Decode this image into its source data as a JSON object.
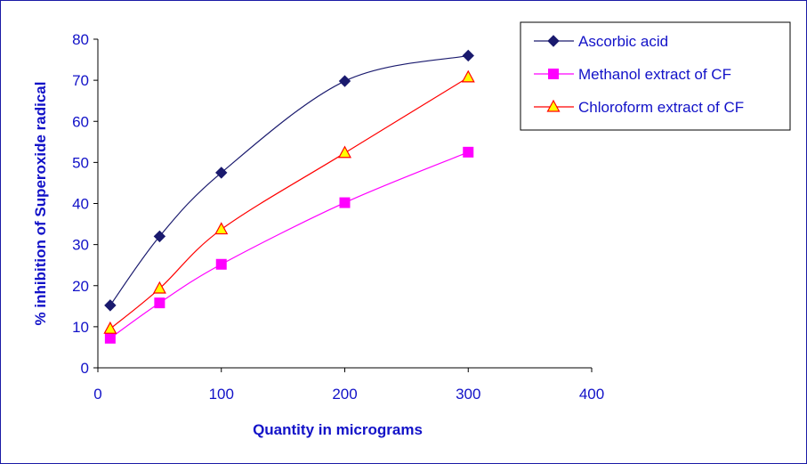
{
  "chart_data": {
    "type": "line",
    "title": "",
    "xlabel": "Quantity in micrograms",
    "ylabel": "% inhibition of Superoxide radical",
    "xlim": [
      0,
      400
    ],
    "ylim": [
      0,
      80
    ],
    "xticks": [
      0,
      100,
      200,
      300,
      400
    ],
    "yticks": [
      0,
      10,
      20,
      30,
      40,
      50,
      60,
      70,
      80
    ],
    "grid": false,
    "legend_position": "top-right",
    "series": [
      {
        "name": "Ascorbic acid",
        "color": "#1a1a6e",
        "marker": "diamond",
        "x": [
          10,
          50,
          100,
          200,
          300
        ],
        "y": [
          15.2,
          32.0,
          47.5,
          69.8,
          76.0
        ]
      },
      {
        "name": "Methanol extract of CF",
        "color": "#ff00ff",
        "marker": "square",
        "x": [
          10,
          50,
          100,
          200,
          300
        ],
        "y": [
          7.2,
          15.8,
          25.2,
          40.2,
          52.5
        ]
      },
      {
        "name": "Chloroform extract of CF",
        "color": "#ff0000",
        "marker_fill": "#ffff00",
        "marker": "triangle",
        "x": [
          10,
          50,
          100,
          200,
          300
        ],
        "y": [
          9.5,
          19.3,
          33.7,
          52.3,
          70.7
        ]
      }
    ]
  }
}
